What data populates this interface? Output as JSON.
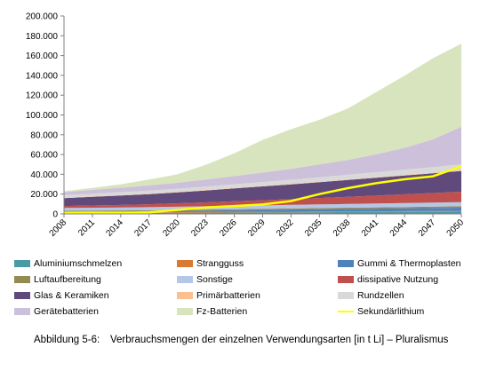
{
  "chart_data": {
    "type": "area",
    "stacked": true,
    "x": [
      "2008",
      "2011",
      "2014",
      "2017",
      "2020",
      "2023",
      "2026",
      "2029",
      "2032",
      "2035",
      "2038",
      "2041",
      "2044",
      "2047",
      "2050"
    ],
    "ylim": [
      0,
      200000
    ],
    "yticks": [
      "0",
      "20.000",
      "40.000",
      "60.000",
      "80.000",
      "100.000",
      "120.000",
      "140.000",
      "160.000",
      "180.000",
      "200.000"
    ],
    "ytick_values": [
      0,
      20000,
      40000,
      60000,
      80000,
      100000,
      120000,
      140000,
      160000,
      180000,
      200000
    ],
    "grid": false,
    "legend_position": "bottom",
    "series": [
      {
        "name": "Aluminiumschmelzen",
        "color": "#4a9aa6",
        "values": [
          1000,
          1050,
          1100,
          1150,
          1200,
          1300,
          1400,
          1500,
          1600,
          1700,
          1800,
          1900,
          2000,
          2100,
          2200
        ]
      },
      {
        "name": "Strangguss",
        "color": "#d97a34",
        "values": [
          500,
          520,
          540,
          560,
          580,
          600,
          620,
          640,
          660,
          680,
          700,
          720,
          740,
          760,
          780
        ]
      },
      {
        "name": "Gummi & Thermoplasten",
        "color": "#4f81bd",
        "values": [
          900,
          950,
          1000,
          1100,
          1300,
          1500,
          1700,
          1900,
          2100,
          2300,
          2500,
          2700,
          2900,
          3100,
          3300
        ]
      },
      {
        "name": "Luftaufbereitung",
        "color": "#948a54",
        "values": [
          800,
          830,
          860,
          900,
          950,
          1000,
          1050,
          1100,
          1150,
          1200,
          1250,
          1300,
          1350,
          1400,
          1450
        ]
      },
      {
        "name": "Sonstige",
        "color": "#b4c7e7",
        "values": [
          2800,
          2900,
          3000,
          3100,
          3200,
          3300,
          3400,
          3500,
          3600,
          3700,
          3800,
          3900,
          4000,
          4100,
          4200
        ]
      },
      {
        "name": "dissipative Nutzung",
        "color": "#c0504d",
        "values": [
          2000,
          2300,
          2600,
          3000,
          3500,
          4000,
          4600,
          5200,
          5800,
          6500,
          7200,
          8000,
          8800,
          9600,
          10500
        ]
      },
      {
        "name": "Glas & Keramiken",
        "color": "#604a7b",
        "values": [
          8000,
          8800,
          9500,
          10200,
          11000,
          12000,
          13000,
          14000,
          15000,
          16000,
          17000,
          18000,
          19000,
          20000,
          21000
        ]
      },
      {
        "name": "Primärbatterien",
        "color": "#fac090",
        "values": [
          300,
          320,
          340,
          360,
          380,
          400,
          420,
          440,
          460,
          480,
          500,
          520,
          540,
          560,
          580
        ]
      },
      {
        "name": "Rundzellen",
        "color": "#d9d9d9",
        "values": [
          2700,
          2800,
          3000,
          3200,
          3400,
          3600,
          3800,
          4000,
          4200,
          4500,
          4800,
          5100,
          5400,
          5700,
          6000
        ]
      },
      {
        "name": "Gerätebatterien",
        "color": "#ccc0da",
        "values": [
          3000,
          3800,
          4500,
          5200,
          6000,
          7000,
          8200,
          9500,
          11000,
          13000,
          15000,
          18000,
          22000,
          28000,
          38000
        ]
      },
      {
        "name": "Fz-Batterien",
        "color": "#d7e4bd",
        "values": [
          1000,
          2000,
          3500,
          6000,
          8500,
          15000,
          23000,
          33000,
          40000,
          45000,
          52000,
          63000,
          73000,
          82000,
          84000
        ]
      }
    ],
    "line_series": {
      "name": "Sekundärlithium",
      "color": "#ffff00",
      "values": [
        1000,
        1100,
        1200,
        1500,
        4000,
        6500,
        8000,
        9500,
        13000,
        20000,
        26000,
        31000,
        35000,
        38000,
        48000
      ]
    }
  },
  "caption": {
    "label": "Abbildung 5-6:",
    "text": "Verbrauchsmengen der einzelnen Verwendungsarten [in t Li] – Pluralismus"
  }
}
